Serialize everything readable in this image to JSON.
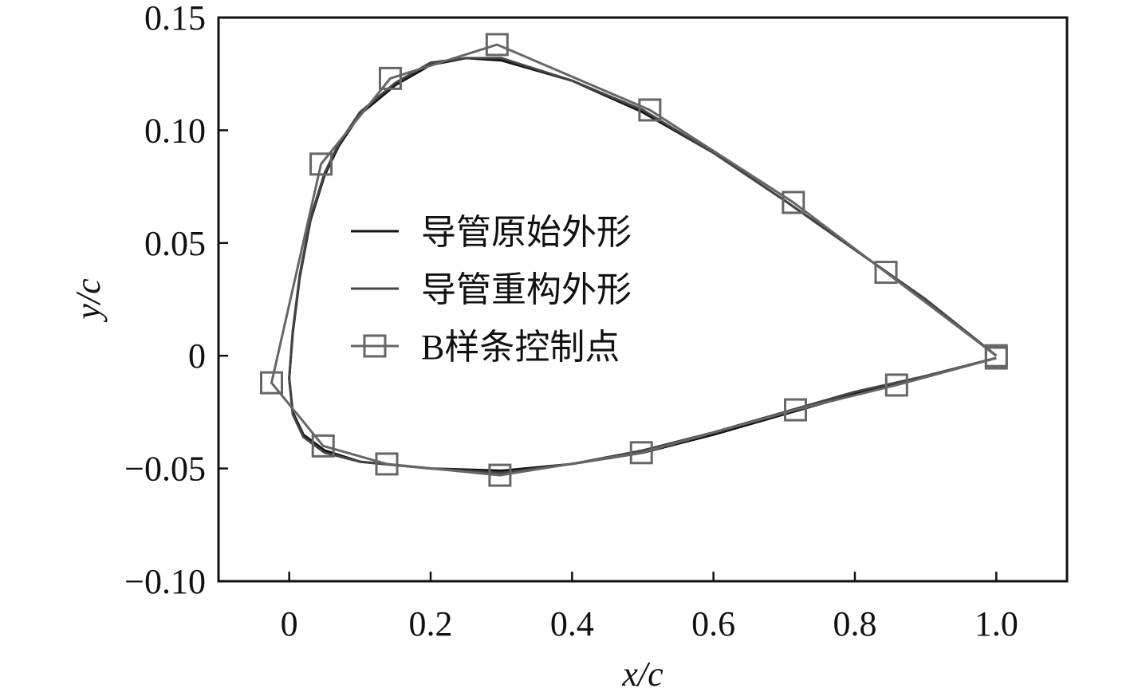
{
  "chart_data": {
    "type": "line",
    "xlabel": "x/c",
    "ylabel": "y/c",
    "xlim": [
      -0.1,
      1.1
    ],
    "ylim": [
      -0.1,
      0.15
    ],
    "xticks": [
      0,
      0.2,
      0.4,
      0.6,
      0.8,
      {
        "value": 1,
        "label": "1.0"
      }
    ],
    "yticks": [
      {
        "value": -0.1,
        "label": "−0.10"
      },
      {
        "value": -0.05,
        "label": "−0.05"
      },
      0,
      0.05,
      {
        "value": 0.1,
        "label": "0.10"
      },
      0.15
    ],
    "grid": false,
    "legend": "center left",
    "series": [
      {
        "name": "导管原始外形",
        "color": "#111111",
        "marker": "none",
        "x": [
          1.0,
          0.9,
          0.8,
          0.7,
          0.6,
          0.5,
          0.4,
          0.3,
          0.25,
          0.2,
          0.15,
          0.1,
          0.07,
          0.05,
          0.03,
          0.015,
          0.005,
          0.0,
          0.005,
          0.02,
          0.05,
          0.1,
          0.2,
          0.3,
          0.4,
          0.5,
          0.6,
          0.7,
          0.8,
          0.9,
          1.0
        ],
        "values": [
          0.0,
          0.025,
          0.047,
          0.069,
          0.09,
          0.108,
          0.122,
          0.131,
          0.132,
          0.129,
          0.12,
          0.107,
          0.093,
          0.08,
          0.06,
          0.035,
          0.01,
          -0.01,
          -0.025,
          -0.035,
          -0.042,
          -0.047,
          -0.05,
          -0.051,
          -0.048,
          -0.043,
          -0.035,
          -0.026,
          -0.017,
          -0.009,
          -0.001
        ]
      },
      {
        "name": "导管重构外形",
        "color": "#444444",
        "marker": "none",
        "x": [
          1.0,
          0.9,
          0.8,
          0.7,
          0.6,
          0.5,
          0.4,
          0.3,
          0.25,
          0.2,
          0.15,
          0.1,
          0.07,
          0.05,
          0.03,
          0.015,
          0.005,
          0.0,
          0.005,
          0.02,
          0.05,
          0.1,
          0.2,
          0.3,
          0.4,
          0.5,
          0.6,
          0.7,
          0.8,
          0.9,
          1.0
        ],
        "values": [
          0.0,
          0.025,
          0.047,
          0.069,
          0.09,
          0.109,
          0.122,
          0.132,
          0.132,
          0.13,
          0.121,
          0.108,
          0.094,
          0.081,
          0.061,
          0.036,
          0.011,
          -0.01,
          -0.026,
          -0.036,
          -0.043,
          -0.047,
          -0.05,
          -0.052,
          -0.048,
          -0.042,
          -0.034,
          -0.025,
          -0.016,
          -0.009,
          -0.001
        ]
      },
      {
        "name": "B样条控制点",
        "color": "#666666",
        "marker": "square",
        "x": [
          1.0,
          0.844,
          0.713,
          0.51,
          0.294,
          0.143,
          0.045,
          -0.025,
          0.048,
          0.138,
          0.298,
          0.498,
          0.716,
          0.859,
          1.0
        ],
        "values": [
          0.0,
          0.037,
          0.068,
          0.109,
          0.138,
          0.123,
          0.085,
          -0.012,
          -0.04,
          -0.048,
          -0.053,
          -0.043,
          -0.024,
          -0.013,
          -0.001
        ]
      }
    ]
  }
}
